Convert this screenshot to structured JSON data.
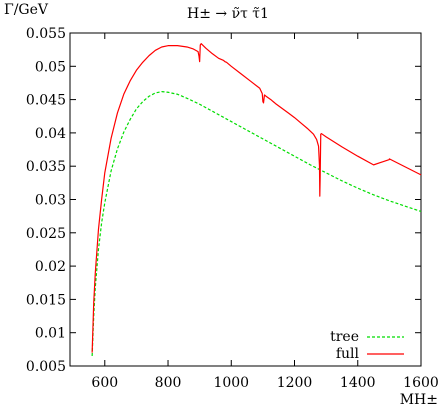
{
  "chart_data": {
    "type": "line",
    "title": "H± → ν̃τ τ̃1",
    "ylabel": "Γ/GeV",
    "xlabel": "MH±",
    "xlim": [
      490,
      1600
    ],
    "ylim": [
      0.005,
      0.055
    ],
    "xticks": [
      600,
      800,
      1000,
      1200,
      1400,
      1600
    ],
    "yticks": [
      0.005,
      0.01,
      0.015,
      0.02,
      0.025,
      0.03,
      0.035,
      0.04,
      0.045,
      0.05,
      0.055
    ],
    "grid": false,
    "legend_position": "bottom-right",
    "series": [
      {
        "name": "tree",
        "color": "#00dd00",
        "style": "dashed",
        "points": [
          [
            560,
            0.0065
          ],
          [
            565,
            0.0125
          ],
          [
            570,
            0.0168
          ],
          [
            580,
            0.0225
          ],
          [
            590,
            0.0265
          ],
          [
            600,
            0.0295
          ],
          [
            620,
            0.0343
          ],
          [
            640,
            0.0376
          ],
          [
            660,
            0.0401
          ],
          [
            680,
            0.042
          ],
          [
            700,
            0.0436
          ],
          [
            720,
            0.0447
          ],
          [
            740,
            0.0455
          ],
          [
            760,
            0.046
          ],
          [
            780,
            0.0462
          ],
          [
            800,
            0.0461
          ],
          [
            830,
            0.0458
          ],
          [
            860,
            0.0452
          ],
          [
            900,
            0.0443
          ],
          [
            950,
            0.043
          ],
          [
            1000,
            0.0417
          ],
          [
            1050,
            0.0404
          ],
          [
            1100,
            0.0391
          ],
          [
            1150,
            0.0378
          ],
          [
            1200,
            0.0365
          ],
          [
            1250,
            0.0352
          ],
          [
            1300,
            0.034
          ],
          [
            1350,
            0.0328
          ],
          [
            1400,
            0.0317
          ],
          [
            1450,
            0.0307
          ],
          [
            1500,
            0.0298
          ],
          [
            1550,
            0.029
          ],
          [
            1600,
            0.0282
          ]
        ]
      },
      {
        "name": "full",
        "color": "#ff0000",
        "style": "solid",
        "points": [
          [
            560,
            0.007
          ],
          [
            565,
            0.0145
          ],
          [
            570,
            0.019
          ],
          [
            580,
            0.0255
          ],
          [
            590,
            0.03
          ],
          [
            600,
            0.034
          ],
          [
            620,
            0.0392
          ],
          [
            640,
            0.043
          ],
          [
            660,
            0.0458
          ],
          [
            680,
            0.0478
          ],
          [
            700,
            0.0494
          ],
          [
            720,
            0.0506
          ],
          [
            740,
            0.0516
          ],
          [
            760,
            0.0524
          ],
          [
            780,
            0.0529
          ],
          [
            800,
            0.0531
          ],
          [
            830,
            0.0531
          ],
          [
            860,
            0.0529
          ],
          [
            880,
            0.0526
          ],
          [
            895,
            0.0522
          ],
          [
            898,
            0.0515
          ],
          [
            900,
            0.0507
          ],
          [
            902,
            0.0532
          ],
          [
            905,
            0.0534
          ],
          [
            920,
            0.0527
          ],
          [
            940,
            0.0519
          ],
          [
            960,
            0.0512
          ],
          [
            975,
            0.0509
          ],
          [
            980,
            0.0507
          ],
          [
            985,
            0.0506
          ],
          [
            1000,
            0.05
          ],
          [
            1030,
            0.0489
          ],
          [
            1060,
            0.0478
          ],
          [
            1090,
            0.0467
          ],
          [
            1098,
            0.0459
          ],
          [
            1100,
            0.0447
          ],
          [
            1102,
            0.0445
          ],
          [
            1105,
            0.0457
          ],
          [
            1110,
            0.0455
          ],
          [
            1125,
            0.045
          ],
          [
            1130,
            0.0448
          ],
          [
            1135,
            0.0446
          ],
          [
            1140,
            0.0444
          ],
          [
            1160,
            0.0437
          ],
          [
            1180,
            0.043
          ],
          [
            1200,
            0.0423
          ],
          [
            1220,
            0.0415
          ],
          [
            1240,
            0.0407
          ],
          [
            1260,
            0.0398
          ],
          [
            1270,
            0.039
          ],
          [
            1276,
            0.038
          ],
          [
            1279,
            0.035
          ],
          [
            1280,
            0.0305
          ],
          [
            1281,
            0.033
          ],
          [
            1283,
            0.0398
          ],
          [
            1285,
            0.0399
          ],
          [
            1300,
            0.0394
          ],
          [
            1350,
            0.0379
          ],
          [
            1400,
            0.0365
          ],
          [
            1450,
            0.0352
          ],
          [
            1500,
            0.036
          ],
          [
            1500,
            0.0361
          ],
          [
            1550,
            0.0349
          ],
          [
            1600,
            0.0337
          ]
        ]
      }
    ]
  }
}
